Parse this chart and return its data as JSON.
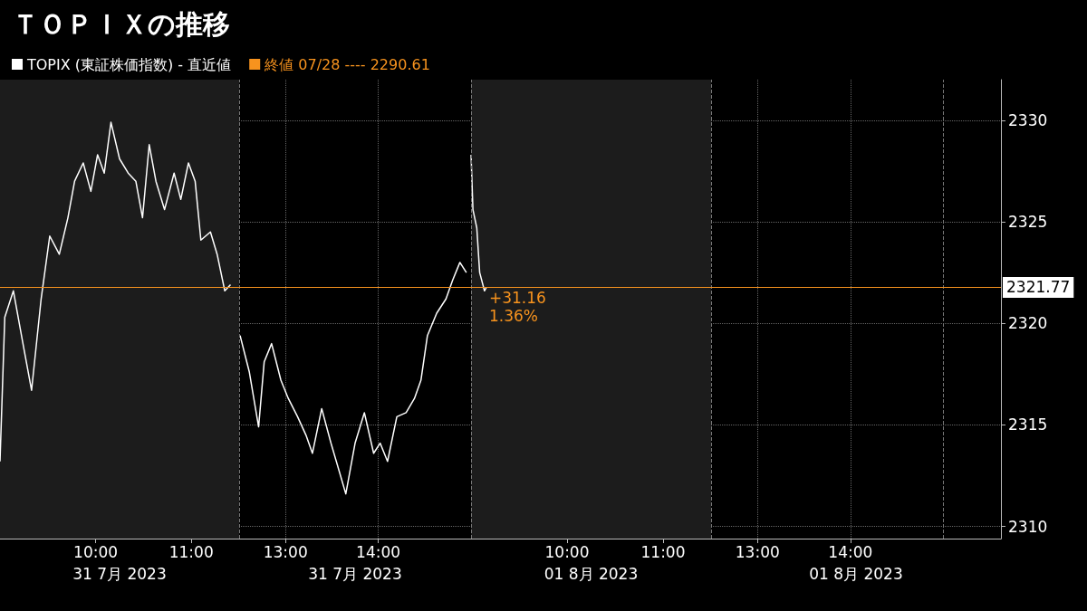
{
  "chart_data": [
    {
      "type": "line",
      "title": "ＴＯＰＩＸの推移",
      "xlabel": "31 7月 2023",
      "series": [
        {
          "name": "TOPIX (東証株価指数) - 直近値",
          "color": "#ffffff",
          "x": [
            9.0,
            9.05,
            9.14,
            9.24,
            9.33,
            9.43,
            9.52,
            9.62,
            9.71,
            9.78,
            9.87,
            9.95,
            10.02,
            10.09,
            10.16,
            10.25,
            10.34,
            10.42,
            10.49,
            10.56,
            10.63,
            10.72,
            10.82,
            10.89,
            10.97,
            11.04,
            11.1,
            11.2,
            11.27,
            11.35,
            11.41
          ],
          "values": [
            2313.2,
            2320.3,
            2321.6,
            2319.0,
            2316.7,
            2321.2,
            2324.3,
            2323.4,
            2325.2,
            2327.0,
            2327.9,
            2326.5,
            2328.3,
            2327.4,
            2329.9,
            2328.1,
            2327.4,
            2327.0,
            2325.2,
            2328.8,
            2327.0,
            2325.6,
            2327.4,
            2326.1,
            2327.9,
            2327.0,
            2324.1,
            2324.5,
            2323.4,
            2321.6,
            2321.9
          ]
        },
        {
          "name": "終値 07/28 ---- 2290.61",
          "color": "#f7931e"
        }
      ],
      "xlim": [
        9,
        11.5
      ],
      "xticks": [
        {
          "value": 10,
          "label": "10:00"
        },
        {
          "value": 11,
          "label": "11:00"
        }
      ],
      "ylim": [
        2309.4,
        2332
      ],
      "yticks": [
        2310,
        2315,
        2320,
        2325,
        2330
      ],
      "bands": [
        {
          "axis": "x",
          "from": 9,
          "to": 11.5,
          "color": "#1c1c1c"
        }
      ],
      "ref_lines": [
        {
          "axis": "y",
          "value": 2321.77,
          "color": "#f7931e",
          "line_style": "solid"
        }
      ],
      "grid": true,
      "legend": "top",
      "tick_labels": "x",
      "marker": "none"
    },
    {
      "type": "line",
      "xlabel": "31 7月 2023",
      "series": [
        {
          "color": "#ffffff",
          "x": [
            12.51,
            12.61,
            12.71,
            12.77,
            12.85,
            12.95,
            13.03,
            13.13,
            13.22,
            13.29,
            13.39,
            13.49,
            13.58,
            13.65,
            13.75,
            13.85,
            13.95,
            14.02,
            14.1,
            14.2,
            14.3,
            14.39,
            14.46,
            14.53,
            14.63,
            14.73,
            14.8,
            14.88,
            14.95
          ],
          "values": [
            2319.4,
            2317.6,
            2314.9,
            2318.1,
            2319.0,
            2317.2,
            2316.3,
            2315.4,
            2314.5,
            2313.6,
            2315.8,
            2314.1,
            2312.7,
            2311.6,
            2314.1,
            2315.6,
            2313.6,
            2314.1,
            2313.2,
            2315.4,
            2315.6,
            2316.3,
            2317.2,
            2319.4,
            2320.5,
            2321.2,
            2322.1,
            2323.0,
            2322.5
          ]
        }
      ],
      "xlim": [
        12.5,
        15
      ],
      "xticks": [
        {
          "value": 13,
          "label": "13:00"
        },
        {
          "value": 14,
          "label": "14:00"
        }
      ],
      "ylim": [
        2309.4,
        2332
      ],
      "yticks": [
        2310,
        2315,
        2320,
        2325,
        2330
      ],
      "ref_lines": [
        {
          "axis": "x",
          "value": 12.5,
          "color": "#777777",
          "line_style": "dashed"
        },
        {
          "axis": "y",
          "value": 2321.77,
          "color": "#f7931e",
          "line_style": "solid"
        }
      ],
      "grid": true,
      "tick_labels": "x",
      "marker": "none"
    },
    {
      "type": "line",
      "xlabel": "01 8月 2023",
      "series": [
        {
          "color": "#ffffff",
          "x": [
            9.0,
            9.02,
            9.06,
            9.09,
            9.14,
            9.16
          ],
          "values": [
            2328.3,
            2325.6,
            2324.7,
            2322.5,
            2321.6,
            2321.77
          ]
        }
      ],
      "xlim": [
        9,
        11.5
      ],
      "xticks": [
        {
          "value": 10,
          "label": "10:00"
        },
        {
          "value": 11,
          "label": "11:00"
        }
      ],
      "ylim": [
        2309.4,
        2332
      ],
      "yticks": [
        2310,
        2315,
        2320,
        2325,
        2330
      ],
      "bands": [
        {
          "axis": "x",
          "from": 9,
          "to": 11.5,
          "color": "#1c1c1c"
        }
      ],
      "ref_lines": [
        {
          "axis": "x",
          "value": 9,
          "color": "#777777",
          "line_style": "dashed"
        },
        {
          "axis": "y",
          "value": 2321.77,
          "color": "#f7931e",
          "line_style": "solid"
        }
      ],
      "annotations": [
        {
          "text": "+31.16",
          "x": 9.16,
          "y": 2321.77
        },
        {
          "text": "1.36%",
          "x": 9.16,
          "y": 2321.77
        }
      ],
      "grid": true,
      "tick_labels": "x",
      "marker": "none"
    },
    {
      "type": "line",
      "xlabel": "01 8月 2023",
      "xlim": [
        12.5,
        15.62
      ],
      "xticks": [
        {
          "value": 13,
          "label": "13:00"
        },
        {
          "value": 14,
          "label": "14:00"
        }
      ],
      "ylim": [
        2309.4,
        2332
      ],
      "yticks": [
        2310,
        2315,
        2320,
        2325,
        2330
      ],
      "ref_lines": [
        {
          "axis": "x",
          "value": 12.5,
          "color": "#777777",
          "line_style": "dashed"
        },
        {
          "axis": "x",
          "value": 15,
          "color": "#777777",
          "line_style": "dashed"
        },
        {
          "axis": "y",
          "value": 2321.77,
          "label": "2321.77",
          "color": "#f7931e",
          "line_style": "solid"
        }
      ],
      "grid": true
    }
  ]
}
